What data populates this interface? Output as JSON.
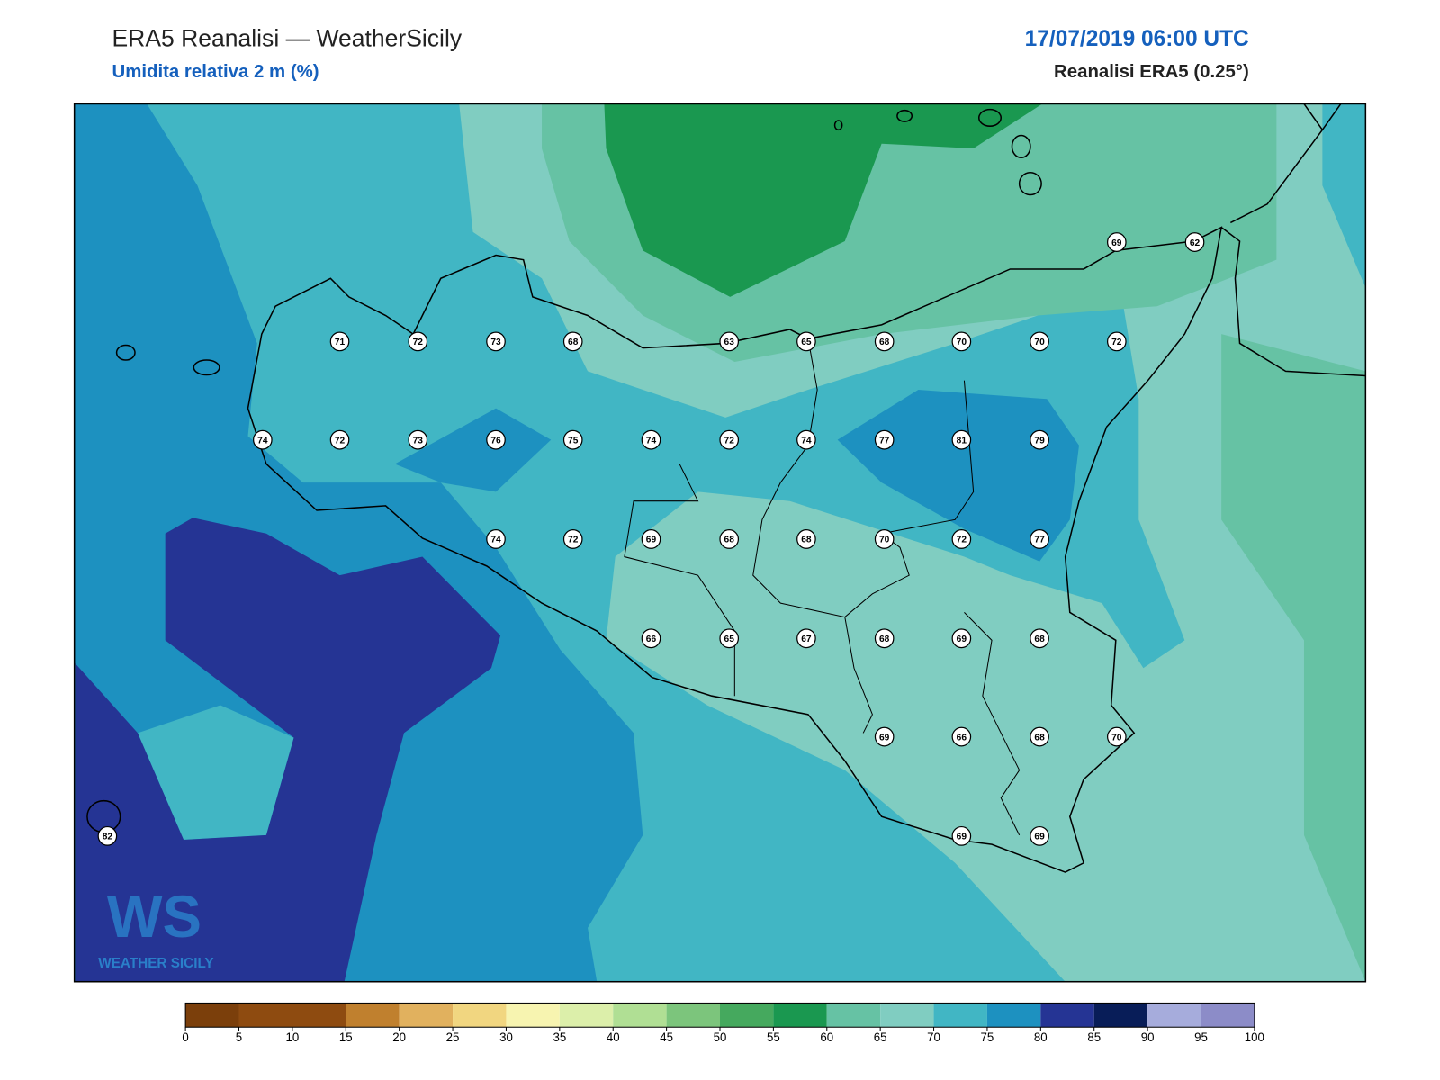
{
  "header": {
    "title": "ERA5 Reanalisi — WeatherSicily",
    "subtitle": "Umidita relativa 2 m (%)",
    "date": "17/07/2019 06:00 UTC",
    "source": "Reanalisi ERA5 (0.25°)"
  },
  "stations": [
    69,
    62,
    71,
    72,
    73,
    68,
    63,
    65,
    68,
    70,
    70,
    72,
    74,
    72,
    73,
    76,
    75,
    74,
    72,
    74,
    77,
    81,
    79,
    74,
    72,
    69,
    68,
    68,
    70,
    72,
    77,
    66,
    65,
    67,
    68,
    69,
    68,
    69,
    66,
    68,
    70,
    82,
    69,
    69
  ],
  "logo": {
    "mark": "WS",
    "text": "WEATHER SICILY"
  },
  "colorbar": {
    "ticks": [
      0,
      5,
      10,
      15,
      20,
      25,
      30,
      35,
      40,
      45,
      50,
      55,
      60,
      65,
      70,
      75,
      80,
      85,
      90,
      95,
      100
    ],
    "colors": [
      "#7b3f0b",
      "#8e4b10",
      "#8e4b10",
      "#c0802e",
      "#e1b15e",
      "#f1d680",
      "#f7f4b0",
      "#dcefaa",
      "#b0df94",
      "#7cc57c",
      "#45a95e",
      "#1a9850",
      "#66c2a4",
      "#80cdc1",
      "#41b6c4",
      "#1d91c0",
      "#253494",
      "#081d58",
      "#a6acdc",
      "#8c8cc8"
    ]
  }
}
